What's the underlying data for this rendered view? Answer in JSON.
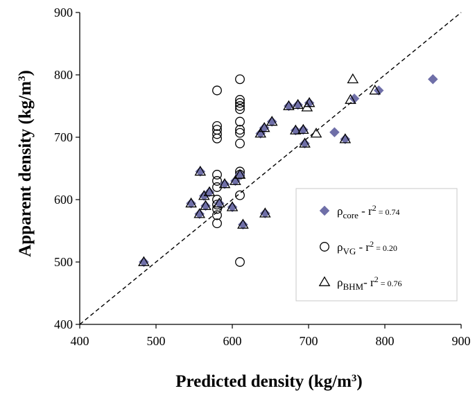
{
  "chart_data": {
    "type": "scatter",
    "xlabel": "Predicted density (kg/m3)",
    "ylabel": "Apparent density (kg/m3)",
    "xlim": [
      400,
      900
    ],
    "ylim": [
      400,
      900
    ],
    "xticks": [
      "400",
      "500",
      "600",
      "700",
      "800",
      "900"
    ],
    "yticks": [
      "400",
      "500",
      "600",
      "700",
      "800",
      "900"
    ],
    "reference_line": "y = x (dashed)",
    "legend_position": "bottom-right",
    "series": [
      {
        "name": "ρcore - r2 = 0.74",
        "symbol": "ρ",
        "subscript": "core",
        "r2_label": " - r",
        "r2_exp": "2",
        "r2_value": " = 0.74",
        "marker": "diamond",
        "color": "#6F6FA8",
        "points": [
          [
            484,
            500
          ],
          [
            546,
            594
          ],
          [
            557,
            577
          ],
          [
            558,
            645
          ],
          [
            563,
            606
          ],
          [
            565,
            590
          ],
          [
            570,
            612
          ],
          [
            583,
            594
          ],
          [
            590,
            625
          ],
          [
            600,
            588
          ],
          [
            604,
            630
          ],
          [
            610,
            640
          ],
          [
            614,
            560
          ],
          [
            637,
            706
          ],
          [
            642,
            715
          ],
          [
            643,
            578
          ],
          [
            652,
            725
          ],
          [
            674,
            750
          ],
          [
            683,
            711
          ],
          [
            686,
            752
          ],
          [
            693,
            712
          ],
          [
            695,
            690
          ],
          [
            701,
            755
          ],
          [
            734,
            708
          ],
          [
            748,
            697
          ],
          [
            760,
            762
          ],
          [
            792,
            775
          ],
          [
            863,
            793
          ]
        ]
      },
      {
        "name": "ρVG - r2 = 0.20",
        "symbol": "ρ",
        "subscript": "VG",
        "r2_label": " - r",
        "r2_exp": "2",
        "r2_value": " = 0.20",
        "marker": "circle",
        "color": "#000000",
        "points": [
          [
            580,
            775
          ],
          [
            580,
            718
          ],
          [
            580,
            712
          ],
          [
            580,
            705
          ],
          [
            580,
            698
          ],
          [
            580,
            640
          ],
          [
            580,
            630
          ],
          [
            580,
            620
          ],
          [
            580,
            600
          ],
          [
            580,
            592
          ],
          [
            580,
            585
          ],
          [
            580,
            575
          ],
          [
            580,
            562
          ],
          [
            610,
            793
          ],
          [
            610,
            760
          ],
          [
            610,
            755
          ],
          [
            610,
            750
          ],
          [
            610,
            745
          ],
          [
            610,
            725
          ],
          [
            610,
            712
          ],
          [
            610,
            707
          ],
          [
            610,
            690
          ],
          [
            610,
            645
          ],
          [
            610,
            640
          ],
          [
            610,
            607
          ],
          [
            610,
            500
          ]
        ]
      },
      {
        "name": "ρBHM- r2 = 0.76",
        "symbol": "ρ",
        "subscript": "BHM",
        "r2_label": "- r",
        "r2_exp": "2",
        "r2_value": " = 0.76",
        "marker": "triangle",
        "color": "#000000",
        "points": [
          [
            484,
            500
          ],
          [
            546,
            594
          ],
          [
            557,
            577
          ],
          [
            558,
            645
          ],
          [
            563,
            606
          ],
          [
            565,
            590
          ],
          [
            570,
            612
          ],
          [
            583,
            594
          ],
          [
            590,
            625
          ],
          [
            600,
            588
          ],
          [
            604,
            630
          ],
          [
            610,
            640
          ],
          [
            614,
            560
          ],
          [
            637,
            706
          ],
          [
            642,
            715
          ],
          [
            643,
            578
          ],
          [
            652,
            725
          ],
          [
            674,
            750
          ],
          [
            683,
            711
          ],
          [
            686,
            752
          ],
          [
            693,
            712
          ],
          [
            695,
            690
          ],
          [
            698,
            748
          ],
          [
            701,
            755
          ],
          [
            710,
            706
          ],
          [
            748,
            697
          ],
          [
            755,
            760
          ],
          [
            758,
            793
          ],
          [
            787,
            775
          ]
        ]
      }
    ]
  }
}
